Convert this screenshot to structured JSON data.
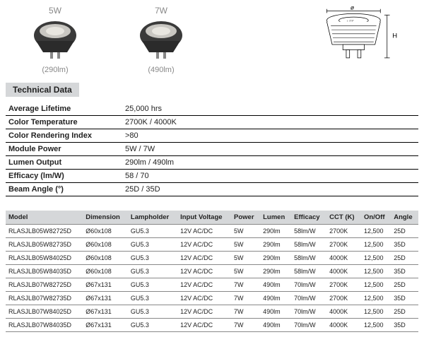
{
  "products": [
    {
      "wattage": "5W",
      "lumens": "(290lm)"
    },
    {
      "wattage": "7W",
      "lumens": "(490lm)"
    }
  ],
  "diagram": {
    "width_label": "ø",
    "height_label": "H"
  },
  "section_title": "Technical Data",
  "specs": [
    {
      "label": "Average Lifetime",
      "value": "25,000 hrs"
    },
    {
      "label": "Color Temperature",
      "value": "2700K / 4000K"
    },
    {
      "label": "Color Rendering Index",
      "value": ">80"
    },
    {
      "label": "Module Power",
      "value": "5W / 7W"
    },
    {
      "label": "Lumen Output",
      "value": "290lm / 490lm"
    },
    {
      "label": "Efficacy (lm/W)",
      "value": "58 / 70"
    },
    {
      "label": "Beam Angle (°)",
      "value": "25D / 35D"
    }
  ],
  "model_columns": [
    "Model",
    "Dimension",
    "Lampholder",
    "Input Voltage",
    "Power",
    "Lumen",
    "Efficacy",
    "CCT (K)",
    "On/Off",
    "Angle"
  ],
  "model_rows": [
    [
      "RLASJLB05W82725D",
      "Ø60x108",
      "GU5.3",
      "12V AC/DC",
      "5W",
      "290lm",
      "58lm/W",
      "2700K",
      "12,500",
      "25D"
    ],
    [
      "RLASJLB05W82735D",
      "Ø60x108",
      "GU5.3",
      "12V AC/DC",
      "5W",
      "290lm",
      "58lm/W",
      "2700K",
      "12,500",
      "35D"
    ],
    [
      "RLASJLB05W84025D",
      "Ø60x108",
      "GU5.3",
      "12V AC/DC",
      "5W",
      "290lm",
      "58lm/W",
      "4000K",
      "12,500",
      "25D"
    ],
    [
      "RLASJLB05W84035D",
      "Ø60x108",
      "GU5.3",
      "12V AC/DC",
      "5W",
      "290lm",
      "58lm/W",
      "4000K",
      "12,500",
      "35D"
    ],
    [
      "RLASJLB07W82725D",
      "Ø67x131",
      "GU5.3",
      "12V AC/DC",
      "7W",
      "490lm",
      "70lm/W",
      "2700K",
      "12,500",
      "25D"
    ],
    [
      "RLASJLB07W82735D",
      "Ø67x131",
      "GU5.3",
      "12V AC/DC",
      "7W",
      "490lm",
      "70lm/W",
      "2700K",
      "12,500",
      "35D"
    ],
    [
      "RLASJLB07W84025D",
      "Ø67x131",
      "GU5.3",
      "12V AC/DC",
      "7W",
      "490lm",
      "70lm/W",
      "4000K",
      "12,500",
      "25D"
    ],
    [
      "RLASJLB07W84035D",
      "Ø67x131",
      "GU5.3",
      "12V AC/DC",
      "7W",
      "490lm",
      "70lm/W",
      "4000K",
      "12,500",
      "35D"
    ]
  ],
  "colors": {
    "header_bg": "#d5d7d9",
    "grey_text": "#888888"
  }
}
